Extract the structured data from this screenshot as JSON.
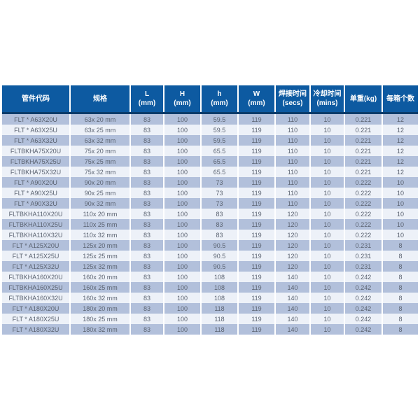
{
  "colors": {
    "page_bg": "#ffffff",
    "header_bg": "#0d5aa1",
    "header_text": "#ffffff",
    "header_border_bottom": "#0a3c6b",
    "row_dark": "#b2c0db",
    "row_light": "#edf1f8",
    "divider": "#ffffff",
    "cell_text": "#5a6270"
  },
  "table": {
    "columns": [
      {
        "label": "管件代码",
        "sub": ""
      },
      {
        "label": "规格",
        "sub": ""
      },
      {
        "label": "L",
        "sub": "(mm)"
      },
      {
        "label": "H",
        "sub": "(mm)"
      },
      {
        "label": "h",
        "sub": "(mm)"
      },
      {
        "label": "W",
        "sub": "(mm)"
      },
      {
        "label": "焊接时间",
        "sub": "(secs)"
      },
      {
        "label": "冷却时间",
        "sub": "(mins)"
      },
      {
        "label": "单重(kg)",
        "sub": ""
      },
      {
        "label": "每箱个数",
        "sub": ""
      }
    ],
    "rows": [
      [
        "FLT * A63X20U",
        "63x 20 mm",
        "83",
        "100",
        "59.5",
        "119",
        "110",
        "10",
        "0.221",
        "12"
      ],
      [
        "FLT * A63X25U",
        "63x 25 mm",
        "83",
        "100",
        "59.5",
        "119",
        "110",
        "10",
        "0.221",
        "12"
      ],
      [
        "FLT * A63X32U",
        "63x 32 mm",
        "83",
        "100",
        "59.5",
        "119",
        "110",
        "10",
        "0.221",
        "12"
      ],
      [
        "FLTBKHA75X20U",
        "75x 20 mm",
        "83",
        "100",
        "65.5",
        "119",
        "110",
        "10",
        "0.221",
        "12"
      ],
      [
        "FLTBKHA75X25U",
        "75x 25 mm",
        "83",
        "100",
        "65.5",
        "119",
        "110",
        "10",
        "0.221",
        "12"
      ],
      [
        "FLTBKHA75X32U",
        "75x 32 mm",
        "83",
        "100",
        "65.5",
        "119",
        "110",
        "10",
        "0.221",
        "12"
      ],
      [
        "FLT * A90X20U",
        "90x 20 mm",
        "83",
        "100",
        "73",
        "119",
        "110",
        "10",
        "0.222",
        "10"
      ],
      [
        "FLT * A90X25U",
        "90x 25 mm",
        "83",
        "100",
        "73",
        "119",
        "110",
        "10",
        "0.222",
        "10"
      ],
      [
        "FLT * A90X32U",
        "90x 32 mm",
        "83",
        "100",
        "73",
        "119",
        "110",
        "10",
        "0.222",
        "10"
      ],
      [
        "FLTBKHA110X20U",
        "110x 20 mm",
        "83",
        "100",
        "83",
        "119",
        "120",
        "10",
        "0.222",
        "10"
      ],
      [
        "FLTBKHA110X25U",
        "110x 25 mm",
        "83",
        "100",
        "83",
        "119",
        "120",
        "10",
        "0.222",
        "10"
      ],
      [
        "FLTBKHA110X32U",
        "110x 32 mm",
        "83",
        "100",
        "83",
        "119",
        "120",
        "10",
        "0.222",
        "10"
      ],
      [
        "FLT * A125X20U",
        "125x 20 mm",
        "83",
        "100",
        "90.5",
        "119",
        "120",
        "10",
        "0.231",
        "8"
      ],
      [
        "FLT * A125X25U",
        "125x 25 mm",
        "83",
        "100",
        "90.5",
        "119",
        "120",
        "10",
        "0.231",
        "8"
      ],
      [
        "FLT * A125X32U",
        "125x 32 mm",
        "83",
        "100",
        "90.5",
        "119",
        "120",
        "10",
        "0.231",
        "8"
      ],
      [
        "FLTBKHA160X20U",
        "160x 20 mm",
        "83",
        "100",
        "108",
        "119",
        "140",
        "10",
        "0.242",
        "8"
      ],
      [
        "FLTBKHA160X25U",
        "160x 25 mm",
        "83",
        "100",
        "108",
        "119",
        "140",
        "10",
        "0.242",
        "8"
      ],
      [
        "FLTBKHA160X32U",
        "160x 32 mm",
        "83",
        "100",
        "108",
        "119",
        "140",
        "10",
        "0.242",
        "8"
      ],
      [
        "FLT * A180X20U",
        "180x 20 mm",
        "83",
        "100",
        "118",
        "119",
        "140",
        "10",
        "0.242",
        "8"
      ],
      [
        "FLT * A180X25U",
        "180x 25 mm",
        "83",
        "100",
        "118",
        "119",
        "140",
        "10",
        "0.242",
        "8"
      ],
      [
        "FLT * A180X32U",
        "180x 32 mm",
        "83",
        "100",
        "118",
        "119",
        "140",
        "10",
        "0.242",
        "8"
      ]
    ]
  }
}
